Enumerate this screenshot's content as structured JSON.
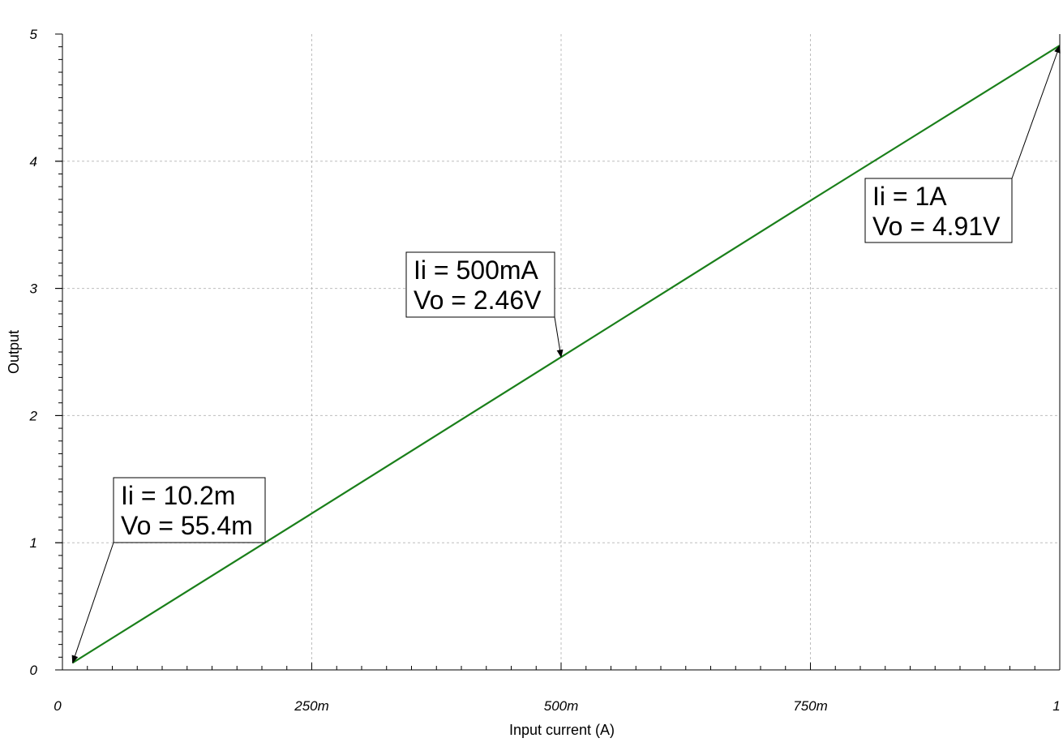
{
  "chart_data": {
    "type": "line",
    "xlabel": "Input current (A)",
    "ylabel": "Output",
    "xlim": [
      0,
      1
    ],
    "ylim": [
      0,
      5
    ],
    "grid": true,
    "x_ticks": [
      {
        "value": 0,
        "label": "0"
      },
      {
        "value": 0.25,
        "label": "250m"
      },
      {
        "value": 0.5,
        "label": "500m"
      },
      {
        "value": 0.75,
        "label": "750m"
      },
      {
        "value": 1,
        "label": "1"
      }
    ],
    "y_ticks": [
      {
        "value": 0,
        "label": "0"
      },
      {
        "value": 1,
        "label": "1"
      },
      {
        "value": 2,
        "label": "2"
      },
      {
        "value": 3,
        "label": "3"
      },
      {
        "value": 4,
        "label": "4"
      },
      {
        "value": 5,
        "label": "5"
      }
    ],
    "series": [
      {
        "color": "#1a7f1a",
        "x": [
          0.0102,
          0.25,
          0.5,
          0.75,
          1.0
        ],
        "y": [
          0.0554,
          1.23,
          2.46,
          3.69,
          4.91
        ]
      }
    ],
    "annotations": [
      {
        "lines": [
          "Ii = 10.2m",
          "Vo = 55.4m"
        ],
        "x": 0.0102,
        "y": 0.0554
      },
      {
        "lines": [
          "Ii = 500mA",
          "Vo = 2.46V"
        ],
        "x": 0.5,
        "y": 2.46
      },
      {
        "lines": [
          "Ii = 1A",
          "Vo = 4.91V"
        ],
        "x": 1.0,
        "y": 4.91
      }
    ]
  }
}
